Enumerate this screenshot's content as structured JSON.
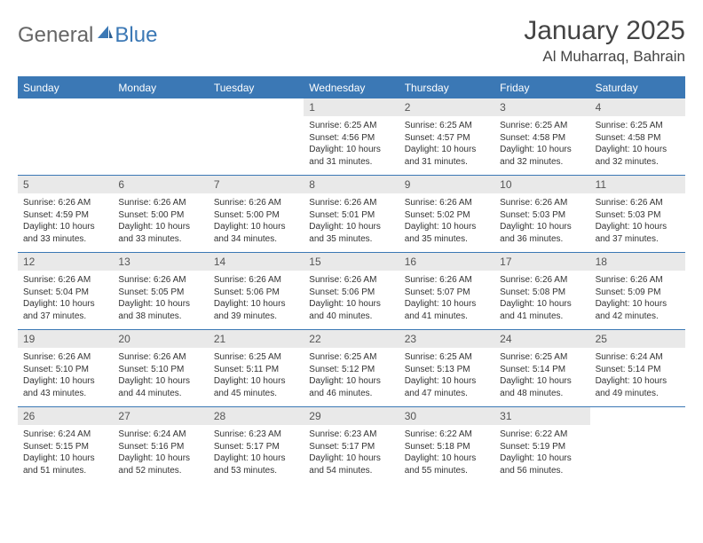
{
  "brand": {
    "word1": "General",
    "word2": "Blue"
  },
  "colors": {
    "accent": "#3b78b5",
    "band": "#e9e9e9",
    "text": "#333333"
  },
  "title": "January 2025",
  "location": "Al Muharraq, Bahrain",
  "dow": [
    "Sunday",
    "Monday",
    "Tuesday",
    "Wednesday",
    "Thursday",
    "Friday",
    "Saturday"
  ],
  "labels": {
    "sunrise": "Sunrise:",
    "sunset": "Sunset:",
    "daylight": "Daylight:"
  },
  "weeks": [
    [
      null,
      null,
      null,
      {
        "n": "1",
        "sr": "6:25 AM",
        "ss": "4:56 PM",
        "dl": "10 hours and 31 minutes."
      },
      {
        "n": "2",
        "sr": "6:25 AM",
        "ss": "4:57 PM",
        "dl": "10 hours and 31 minutes."
      },
      {
        "n": "3",
        "sr": "6:25 AM",
        "ss": "4:58 PM",
        "dl": "10 hours and 32 minutes."
      },
      {
        "n": "4",
        "sr": "6:25 AM",
        "ss": "4:58 PM",
        "dl": "10 hours and 32 minutes."
      }
    ],
    [
      {
        "n": "5",
        "sr": "6:26 AM",
        "ss": "4:59 PM",
        "dl": "10 hours and 33 minutes."
      },
      {
        "n": "6",
        "sr": "6:26 AM",
        "ss": "5:00 PM",
        "dl": "10 hours and 33 minutes."
      },
      {
        "n": "7",
        "sr": "6:26 AM",
        "ss": "5:00 PM",
        "dl": "10 hours and 34 minutes."
      },
      {
        "n": "8",
        "sr": "6:26 AM",
        "ss": "5:01 PM",
        "dl": "10 hours and 35 minutes."
      },
      {
        "n": "9",
        "sr": "6:26 AM",
        "ss": "5:02 PM",
        "dl": "10 hours and 35 minutes."
      },
      {
        "n": "10",
        "sr": "6:26 AM",
        "ss": "5:03 PM",
        "dl": "10 hours and 36 minutes."
      },
      {
        "n": "11",
        "sr": "6:26 AM",
        "ss": "5:03 PM",
        "dl": "10 hours and 37 minutes."
      }
    ],
    [
      {
        "n": "12",
        "sr": "6:26 AM",
        "ss": "5:04 PM",
        "dl": "10 hours and 37 minutes."
      },
      {
        "n": "13",
        "sr": "6:26 AM",
        "ss": "5:05 PM",
        "dl": "10 hours and 38 minutes."
      },
      {
        "n": "14",
        "sr": "6:26 AM",
        "ss": "5:06 PM",
        "dl": "10 hours and 39 minutes."
      },
      {
        "n": "15",
        "sr": "6:26 AM",
        "ss": "5:06 PM",
        "dl": "10 hours and 40 minutes."
      },
      {
        "n": "16",
        "sr": "6:26 AM",
        "ss": "5:07 PM",
        "dl": "10 hours and 41 minutes."
      },
      {
        "n": "17",
        "sr": "6:26 AM",
        "ss": "5:08 PM",
        "dl": "10 hours and 41 minutes."
      },
      {
        "n": "18",
        "sr": "6:26 AM",
        "ss": "5:09 PM",
        "dl": "10 hours and 42 minutes."
      }
    ],
    [
      {
        "n": "19",
        "sr": "6:26 AM",
        "ss": "5:10 PM",
        "dl": "10 hours and 43 minutes."
      },
      {
        "n": "20",
        "sr": "6:26 AM",
        "ss": "5:10 PM",
        "dl": "10 hours and 44 minutes."
      },
      {
        "n": "21",
        "sr": "6:25 AM",
        "ss": "5:11 PM",
        "dl": "10 hours and 45 minutes."
      },
      {
        "n": "22",
        "sr": "6:25 AM",
        "ss": "5:12 PM",
        "dl": "10 hours and 46 minutes."
      },
      {
        "n": "23",
        "sr": "6:25 AM",
        "ss": "5:13 PM",
        "dl": "10 hours and 47 minutes."
      },
      {
        "n": "24",
        "sr": "6:25 AM",
        "ss": "5:14 PM",
        "dl": "10 hours and 48 minutes."
      },
      {
        "n": "25",
        "sr": "6:24 AM",
        "ss": "5:14 PM",
        "dl": "10 hours and 49 minutes."
      }
    ],
    [
      {
        "n": "26",
        "sr": "6:24 AM",
        "ss": "5:15 PM",
        "dl": "10 hours and 51 minutes."
      },
      {
        "n": "27",
        "sr": "6:24 AM",
        "ss": "5:16 PM",
        "dl": "10 hours and 52 minutes."
      },
      {
        "n": "28",
        "sr": "6:23 AM",
        "ss": "5:17 PM",
        "dl": "10 hours and 53 minutes."
      },
      {
        "n": "29",
        "sr": "6:23 AM",
        "ss": "5:17 PM",
        "dl": "10 hours and 54 minutes."
      },
      {
        "n": "30",
        "sr": "6:22 AM",
        "ss": "5:18 PM",
        "dl": "10 hours and 55 minutes."
      },
      {
        "n": "31",
        "sr": "6:22 AM",
        "ss": "5:19 PM",
        "dl": "10 hours and 56 minutes."
      },
      null
    ]
  ]
}
